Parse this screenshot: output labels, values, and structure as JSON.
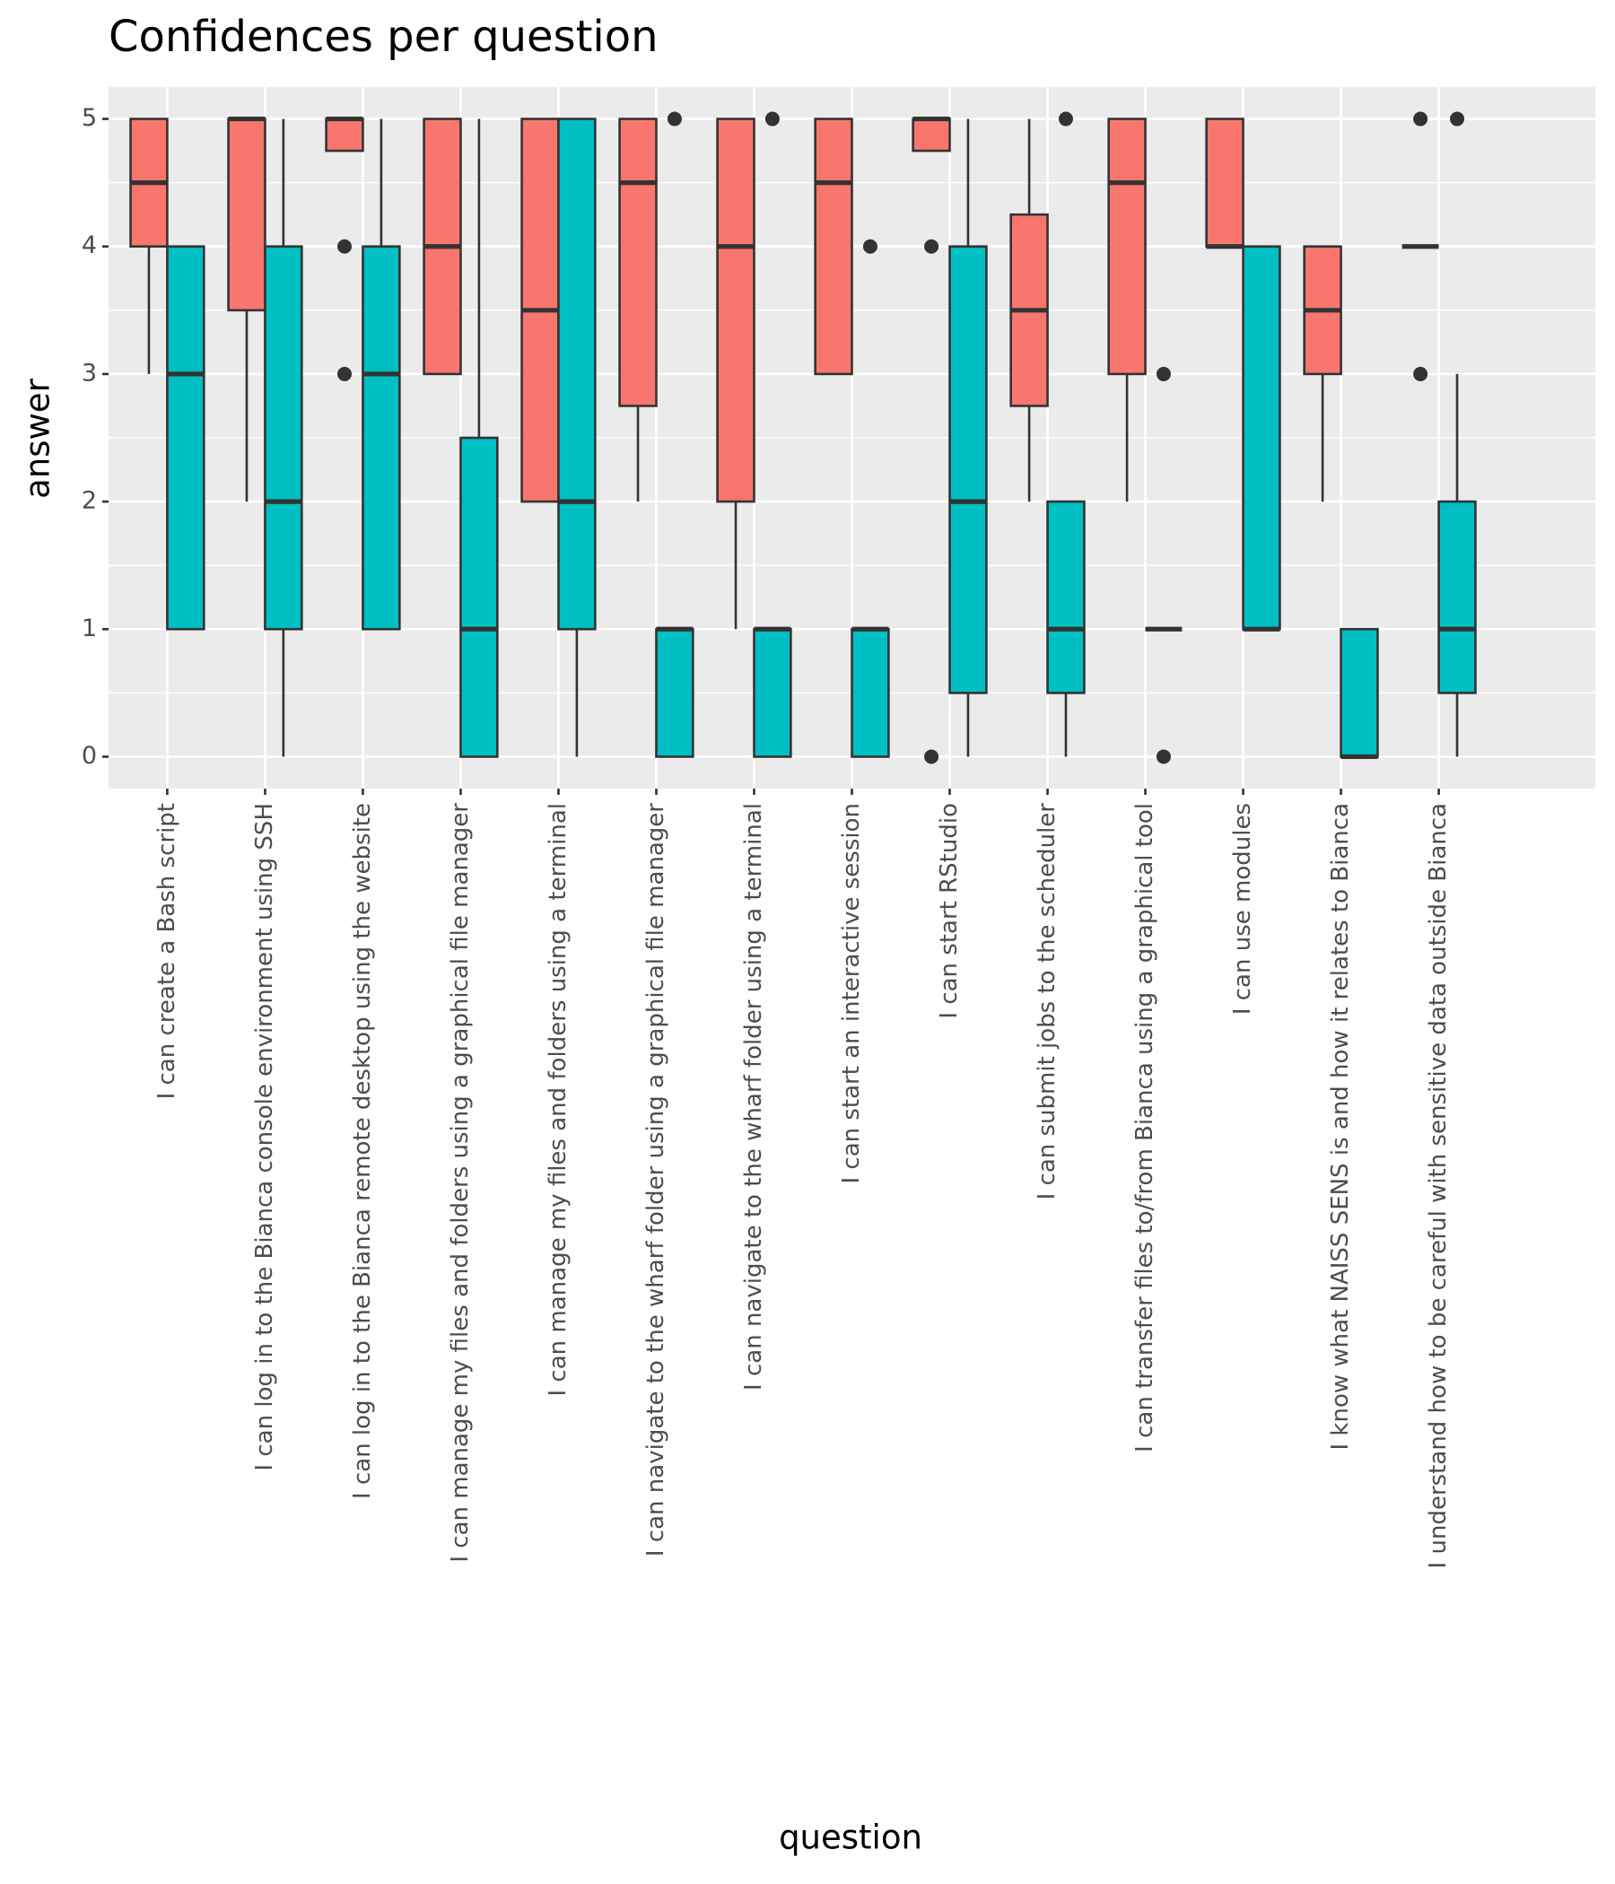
{
  "chart_data": {
    "type": "box",
    "title": "Confidences per question",
    "x_label": "question",
    "y_label": "answer",
    "categories": [
      "I can create a Bash script",
      "I can log in to the Bianca console environment using SSH",
      "I can log in to the Bianca remote desktop using the website",
      "I can manage my files and folders using a graphical file manager",
      "I can manage my files and folders using a terminal",
      "I can navigate to the wharf folder using a graphical file manager",
      "I can navigate to the wharf folder using a terminal",
      "I can start an interactive session",
      "I can start RStudio",
      "I can submit jobs to the scheduler",
      "I can transfer files to/from Bianca using a graphical tool",
      "I can use modules",
      "I know what NAISS SENS is and how it relates to Bianca",
      "I understand how to be careful with sensitive data outside Bianca"
    ],
    "ylim": [
      -0.25,
      5.25
    ],
    "yticks": [
      0,
      1,
      2,
      3,
      4,
      5
    ],
    "grid": true,
    "series": [
      {
        "color": "#F8766D",
        "values": [
          {
            "min": 3,
            "q1": 4,
            "median": 4.5,
            "q3": 5,
            "max": 5,
            "outliers": []
          },
          {
            "min": 2,
            "q1": 3.5,
            "median": 5,
            "q3": 5,
            "max": 5,
            "outliers": []
          },
          {
            "min": 4.75,
            "q1": 4.75,
            "median": 5,
            "q3": 5,
            "max": 5,
            "outliers": [
              4,
              3
            ]
          },
          {
            "min": 3,
            "q1": 3,
            "median": 4,
            "q3": 5,
            "max": 5,
            "outliers": []
          },
          {
            "min": 2,
            "q1": 2,
            "median": 3.5,
            "q3": 5,
            "max": 5,
            "outliers": []
          },
          {
            "min": 2,
            "q1": 2.75,
            "median": 4.5,
            "q3": 5,
            "max": 5,
            "outliers": []
          },
          {
            "min": 1,
            "q1": 2,
            "median": 4,
            "q3": 5,
            "max": 5,
            "outliers": []
          },
          {
            "min": 3,
            "q1": 3,
            "median": 4.5,
            "q3": 5,
            "max": 5,
            "outliers": []
          },
          {
            "min": 4.75,
            "q1": 4.75,
            "median": 5,
            "q3": 5,
            "max": 5,
            "outliers": [
              4,
              0
            ]
          },
          {
            "min": 2,
            "q1": 2.75,
            "median": 3.5,
            "q3": 4.25,
            "max": 5,
            "outliers": []
          },
          {
            "min": 2,
            "q1": 3,
            "median": 4.5,
            "q3": 5,
            "max": 5,
            "outliers": []
          },
          {
            "min": 4,
            "q1": 4,
            "median": 4,
            "q3": 5,
            "max": 5,
            "outliers": []
          },
          {
            "min": 2,
            "q1": 3,
            "median": 3.5,
            "q3": 4,
            "max": 4,
            "outliers": []
          },
          {
            "min": 4,
            "q1": 4,
            "median": 4,
            "q3": 4,
            "max": 4,
            "outliers": [
              5,
              3
            ]
          }
        ]
      },
      {
        "color": "#00BFC4",
        "values": [
          {
            "min": 1,
            "q1": 1,
            "median": 3,
            "q3": 4,
            "max": 4,
            "outliers": []
          },
          {
            "min": 0,
            "q1": 1,
            "median": 2,
            "q3": 4,
            "max": 5,
            "outliers": []
          },
          {
            "min": 1,
            "q1": 1,
            "median": 3,
            "q3": 4,
            "max": 5,
            "outliers": []
          },
          {
            "min": 0,
            "q1": 0,
            "median": 1,
            "q3": 2.5,
            "max": 5,
            "outliers": []
          },
          {
            "min": 0,
            "q1": 1,
            "median": 2,
            "q3": 5,
            "max": 5,
            "outliers": []
          },
          {
            "min": 0,
            "q1": 0,
            "median": 1,
            "q3": 1,
            "max": 1,
            "outliers": [
              5
            ]
          },
          {
            "min": 0,
            "q1": 0,
            "median": 1,
            "q3": 1,
            "max": 1,
            "outliers": [
              5
            ]
          },
          {
            "min": 0,
            "q1": 0,
            "median": 1,
            "q3": 1,
            "max": 1,
            "outliers": [
              4
            ]
          },
          {
            "min": 0,
            "q1": 0.5,
            "median": 2,
            "q3": 4,
            "max": 5,
            "outliers": []
          },
          {
            "min": 0,
            "q1": 0.5,
            "median": 1,
            "q3": 2,
            "max": 2,
            "outliers": [
              5
            ]
          },
          {
            "min": 1,
            "q1": 1,
            "median": 1,
            "q3": 1,
            "max": 1,
            "outliers": [
              3,
              0
            ]
          },
          {
            "min": 1,
            "q1": 1,
            "median": 1,
            "q3": 4,
            "max": 4,
            "outliers": []
          },
          {
            "min": 0,
            "q1": 0,
            "median": 0,
            "q3": 1,
            "max": 1,
            "outliers": []
          },
          {
            "min": 0,
            "q1": 0.5,
            "median": 1,
            "q3": 2,
            "max": 3,
            "outliers": [
              5
            ]
          }
        ]
      }
    ]
  }
}
